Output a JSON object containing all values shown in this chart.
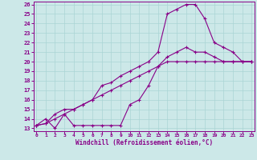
{
  "xlabel": "Windchill (Refroidissement éolien,°C)",
  "bg_color": "#cce8e8",
  "line_color": "#880088",
  "grid_color": "#aad4d4",
  "xmin": 0,
  "xmax": 23,
  "ymin": 13,
  "ymax": 26,
  "series": [
    [
      0,
      13.3,
      1,
      14.0,
      2,
      13.0,
      3,
      14.5,
      4,
      13.3,
      5,
      13.3,
      6,
      13.3,
      7,
      13.3,
      8,
      13.3,
      9,
      13.3,
      10,
      15.5,
      11,
      16.0,
      12,
      17.5,
      13,
      19.5,
      14,
      20.5,
      15,
      21.0,
      16,
      21.5,
      17,
      21.0,
      18,
      21.0,
      19,
      20.5,
      20,
      20.0,
      21,
      20.0,
      22,
      20.0,
      23,
      20.0
    ],
    [
      0,
      13.3,
      1,
      13.5,
      2,
      14.5,
      3,
      15.0,
      4,
      15.0,
      5,
      15.5,
      6,
      16.0,
      7,
      17.5,
      8,
      17.8,
      9,
      18.5,
      10,
      19.0,
      11,
      19.5,
      12,
      20.0,
      13,
      21.0,
      14,
      25.0,
      15,
      25.5,
      16,
      26.0,
      17,
      26.0,
      18,
      24.5,
      19,
      22.0,
      20,
      21.5,
      21,
      21.0,
      22,
      20.0,
      23,
      20.0
    ],
    [
      0,
      13.3,
      1,
      13.5,
      2,
      14.0,
      3,
      14.5,
      4,
      15.0,
      5,
      15.5,
      6,
      16.0,
      7,
      16.5,
      8,
      17.0,
      9,
      17.5,
      10,
      18.0,
      11,
      18.5,
      12,
      19.0,
      13,
      19.5,
      14,
      20.0,
      15,
      20.0,
      16,
      20.0,
      17,
      20.0,
      18,
      20.0,
      19,
      20.0,
      20,
      20.0,
      21,
      20.0,
      22,
      20.0,
      23,
      20.0
    ]
  ]
}
